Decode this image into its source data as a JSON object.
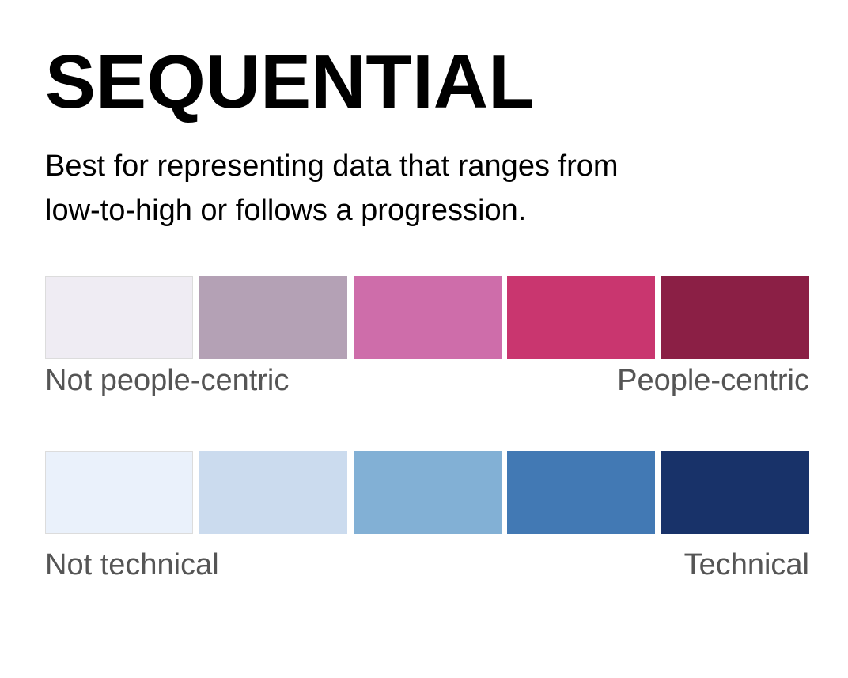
{
  "title": "SEQUENTIAL",
  "description": {
    "line1": "Best for representing data that ranges from",
    "line2": "low-to-high or follows a progression."
  },
  "scales": [
    {
      "low_label": "Not people-centric",
      "high_label": "People-centric",
      "colors": [
        "#efecf3",
        "#b4a1b5",
        "#ce6daa",
        "#c9366f",
        "#8b1f45"
      ]
    },
    {
      "low_label": "Not technical",
      "high_label": "Technical",
      "colors": [
        "#eaf1fb",
        "#cbdbee",
        "#82b0d5",
        "#4279b4",
        "#183269"
      ]
    }
  ]
}
